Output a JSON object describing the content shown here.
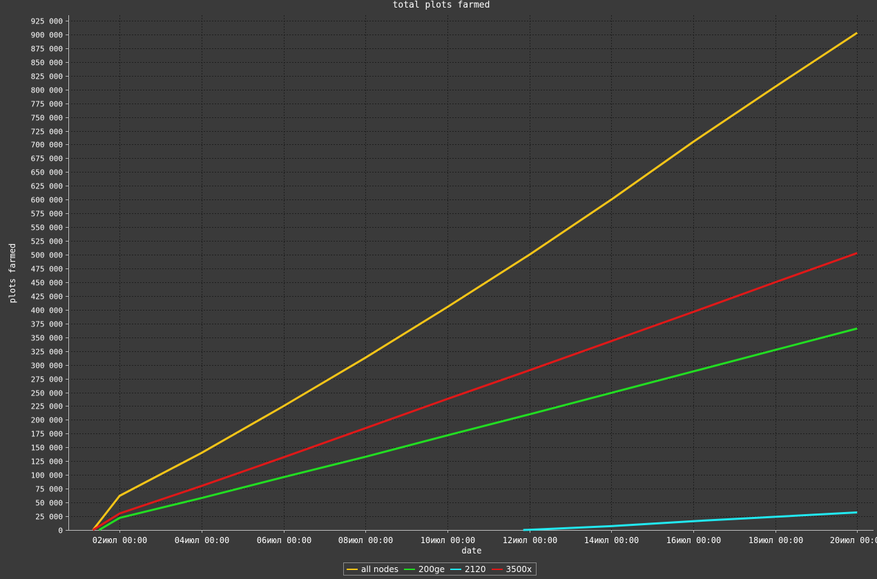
{
  "chart_data": {
    "type": "line",
    "title": "total plots farmed",
    "xlabel": "date",
    "ylabel": "plots farmed",
    "x_tick_labels": [
      "02июл 00:00",
      "04июл 00:00",
      "06июл 00:00",
      "08июл 00:00",
      "10июл 00:00",
      "12июл 00:00",
      "14июл 00:00",
      "16июл 00:00",
      "18июл 00:00",
      "20июл 00:00"
    ],
    "x_ticks_day": [
      2,
      4,
      6,
      8,
      10,
      12,
      14,
      16,
      18,
      20
    ],
    "y_tick_labels": [
      "0",
      "25 000",
      "50 000",
      "75 000",
      "100 000",
      "125 000",
      "150 000",
      "175 000",
      "200 000",
      "225 000",
      "250 000",
      "275 000",
      "300 000",
      "325 000",
      "350 000",
      "375 000",
      "400 000",
      "425 000",
      "450 000",
      "475 000",
      "500 000",
      "525 000",
      "550 000",
      "575 000",
      "600 000",
      "625 000",
      "650 000",
      "675 000",
      "700 000",
      "725 000",
      "750 000",
      "775 000",
      "800 000",
      "825 000",
      "850 000",
      "875 000",
      "900 000",
      "925 000"
    ],
    "xlim_day": [
      0.75,
      20.4
    ],
    "ylim": [
      0,
      935000
    ],
    "grid": true,
    "legend_position": "bottom-center",
    "series": [
      {
        "name": "all nodes",
        "color": "#f5c518",
        "x_day": [
          1.35,
          2.0,
          4.0,
          6.0,
          8.0,
          10.0,
          12.0,
          14.0,
          16.0,
          18.0,
          20.0
        ],
        "y": [
          0,
          62000,
          140000,
          225000,
          313000,
          405000,
          500000,
          600000,
          705000,
          805000,
          903000
        ]
      },
      {
        "name": "200ge",
        "color": "#22dd22",
        "x_day": [
          1.5,
          2.0,
          4.0,
          6.0,
          8.0,
          10.0,
          12.0,
          14.0,
          16.0,
          18.0,
          20.0
        ],
        "y": [
          0,
          22000,
          58000,
          96000,
          133000,
          172000,
          210000,
          249000,
          288000,
          327000,
          366000
        ]
      },
      {
        "name": "2120",
        "color": "#22e8f0",
        "x_day": [
          11.85,
          12.5,
          14.0,
          16.0,
          18.0,
          20.0
        ],
        "y": [
          0,
          2000,
          7000,
          16000,
          24000,
          32000
        ]
      },
      {
        "name": "3500x",
        "color": "#e01818",
        "x_day": [
          1.35,
          2.0,
          4.0,
          6.0,
          8.0,
          10.0,
          12.0,
          14.0,
          16.0,
          18.0,
          20.0
        ],
        "y": [
          0,
          30000,
          80000,
          132000,
          185000,
          238000,
          290000,
          343000,
          396000,
          450000,
          503000
        ]
      }
    ]
  },
  "colors": {
    "background": "#3a3a3a",
    "grid": "#1e1e1e",
    "axis": "#bbbbbb",
    "text": "#ffffff"
  }
}
